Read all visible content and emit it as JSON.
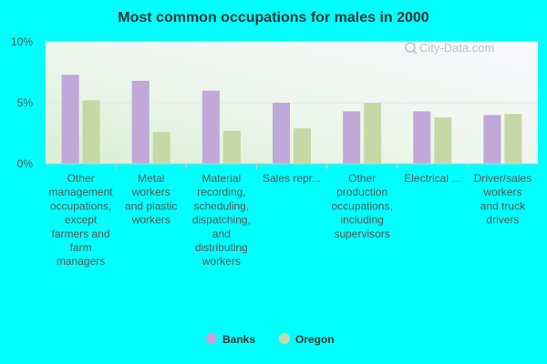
{
  "chart_data": {
    "type": "bar",
    "title": "Most common occupations for males in 2000",
    "xlabel": "",
    "ylabel": "",
    "ylim": [
      0,
      10
    ],
    "yticks": [
      "0%",
      "5%",
      "10%"
    ],
    "yticks_values": [
      0,
      5,
      10
    ],
    "categories": [
      "Other management occupations, except farmers and farm managers",
      "Metal workers and plastic workers",
      "Material recording, scheduling, dispatching, and distributing workers",
      "Sales repr...",
      "Other production occupations, including supervisors",
      "Electrical ...",
      "Driver/sales workers and truck drivers"
    ],
    "category_lines": [
      [
        "Other",
        "management",
        "occupations,",
        "except",
        "farmers and",
        "farm",
        "managers"
      ],
      [
        "Metal",
        "workers",
        "and plastic",
        "workers"
      ],
      [
        "Material",
        "recording,",
        "scheduling,",
        "dispatching,",
        "and",
        "distributing",
        "workers"
      ],
      [
        "Sales repr..."
      ],
      [
        "Other",
        "production",
        "occupations,",
        "including",
        "supervisors"
      ],
      [
        "Electrical ..."
      ],
      [
        "Driver/sales",
        "workers",
        "and truck",
        "drivers"
      ]
    ],
    "series": [
      {
        "name": "Banks",
        "color": "#c0a8d8",
        "values": [
          7.3,
          6.8,
          6.0,
          5.0,
          4.3,
          4.3,
          4.0
        ]
      },
      {
        "name": "Oregon",
        "color": "#c5d9a6",
        "values": [
          5.2,
          2.6,
          2.7,
          2.9,
          5.0,
          3.8,
          4.1
        ]
      }
    ],
    "grid": true,
    "legend_position": "bottom"
  },
  "watermark": "City-Data.com",
  "watermark_icon": "magnifier-icon"
}
